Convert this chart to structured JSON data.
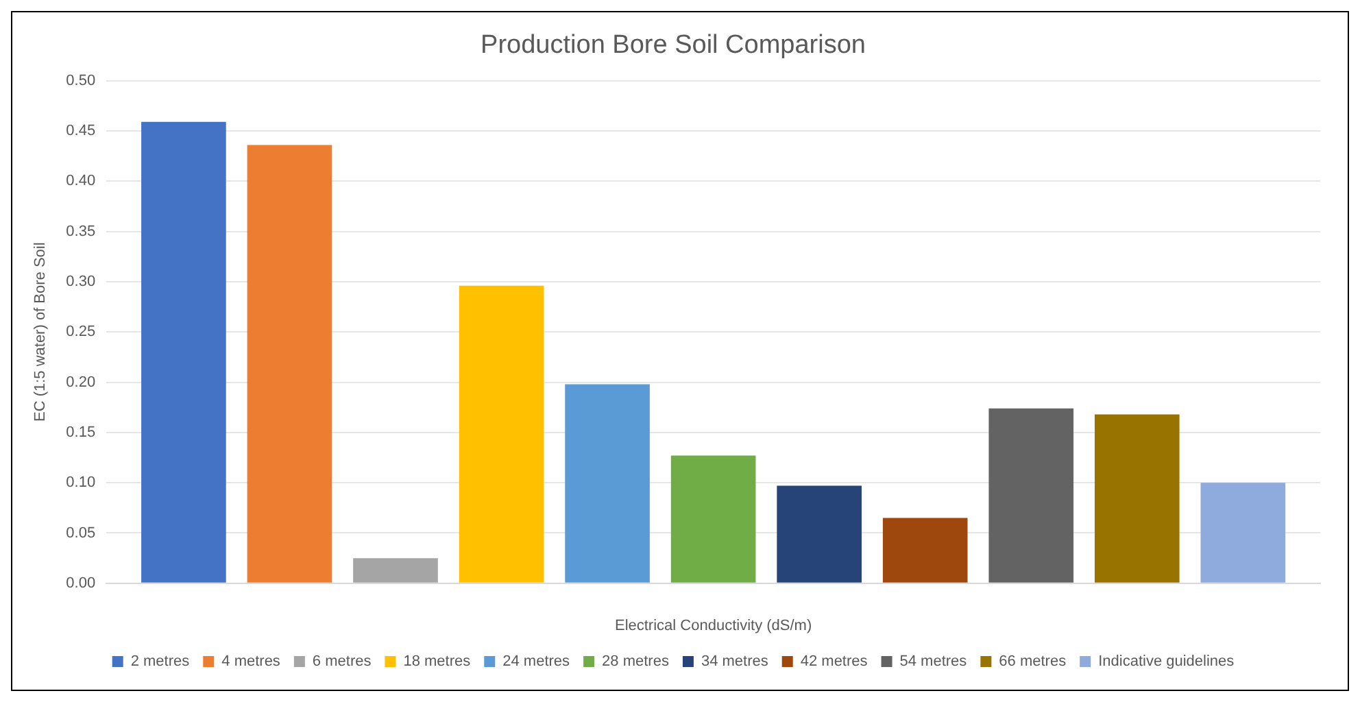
{
  "chart_data": {
    "type": "bar",
    "title": "Production Bore Soil Comparison",
    "xlabel": "Electrical Conductivity (dS/m)",
    "ylabel": "EC (1:5 water) of Bore Soil",
    "categories": [
      null
    ],
    "series": [
      {
        "name": "2 metres",
        "color": "#4472c4",
        "values": [
          0.459
        ]
      },
      {
        "name": "4 metres",
        "color": "#ed7d31",
        "values": [
          0.436
        ]
      },
      {
        "name": "6 metres",
        "color": "#a5a5a5",
        "values": [
          0.025
        ]
      },
      {
        "name": "18 metres",
        "color": "#ffc000",
        "values": [
          0.296
        ]
      },
      {
        "name": "24 metres",
        "color": "#5b9bd5",
        "values": [
          0.198
        ]
      },
      {
        "name": "28 metres",
        "color": "#70ad47",
        "values": [
          0.127
        ]
      },
      {
        "name": "34 metres",
        "color": "#264478",
        "values": [
          0.097
        ]
      },
      {
        "name": "42 metres",
        "color": "#9e480e",
        "values": [
          0.065
        ]
      },
      {
        "name": "54 metres",
        "color": "#636363",
        "values": [
          0.174
        ]
      },
      {
        "name": "66 metres",
        "color": "#997300",
        "values": [
          0.168
        ]
      },
      {
        "name": "Indicative guidelines",
        "color": "#8faadc",
        "values": [
          0.1
        ]
      }
    ],
    "ylim": [
      0,
      0.5
    ],
    "yticks": [
      {
        "value": 0,
        "label": "0.00"
      },
      {
        "value": 0.05,
        "label": "0.05"
      },
      {
        "value": 0.1,
        "label": "0.10"
      },
      {
        "value": 0.15,
        "label": "0.15"
      },
      {
        "value": 0.2,
        "label": "0.20"
      },
      {
        "value": 0.25,
        "label": "0.25"
      },
      {
        "value": 0.3,
        "label": "0.30"
      },
      {
        "value": 0.35,
        "label": "0.35"
      },
      {
        "value": 0.4,
        "label": "0.40"
      },
      {
        "value": 0.45,
        "label": "0.45"
      },
      {
        "value": 0.5,
        "label": "0.50"
      }
    ],
    "grid": "y",
    "legend": "bottom"
  }
}
